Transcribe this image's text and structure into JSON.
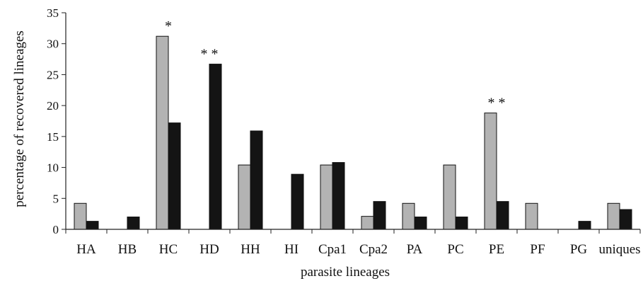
{
  "chart_data": {
    "type": "bar",
    "title": "",
    "xlabel": "parasite lineages",
    "ylabel": "percentage of recovered lineages",
    "ylim": [
      0,
      35
    ],
    "yticks": [
      0,
      5,
      10,
      15,
      20,
      25,
      30,
      35
    ],
    "grid": false,
    "legend": "none",
    "categories": [
      "HA",
      "HB",
      "HC",
      "HD",
      "HH",
      "HI",
      "Cpa1",
      "Cpa2",
      "PA",
      "PC",
      "PE",
      "PF",
      "PG",
      "uniques"
    ],
    "series": [
      {
        "color": "#b3b3b3",
        "values": [
          4.2,
          0,
          31.2,
          0,
          10.4,
          0,
          10.4,
          2.1,
          4.2,
          10.4,
          18.8,
          4.2,
          0,
          4.2
        ]
      },
      {
        "color": "#141414",
        "values": [
          1.3,
          2.0,
          17.2,
          26.7,
          15.9,
          8.9,
          10.8,
          4.5,
          2.0,
          2.0,
          4.5,
          0,
          1.3,
          3.2
        ]
      }
    ],
    "annotations": [
      {
        "category": "HC",
        "text": "*"
      },
      {
        "category": "HD",
        "text": "* *"
      },
      {
        "category": "PE",
        "text": "* *"
      }
    ]
  }
}
